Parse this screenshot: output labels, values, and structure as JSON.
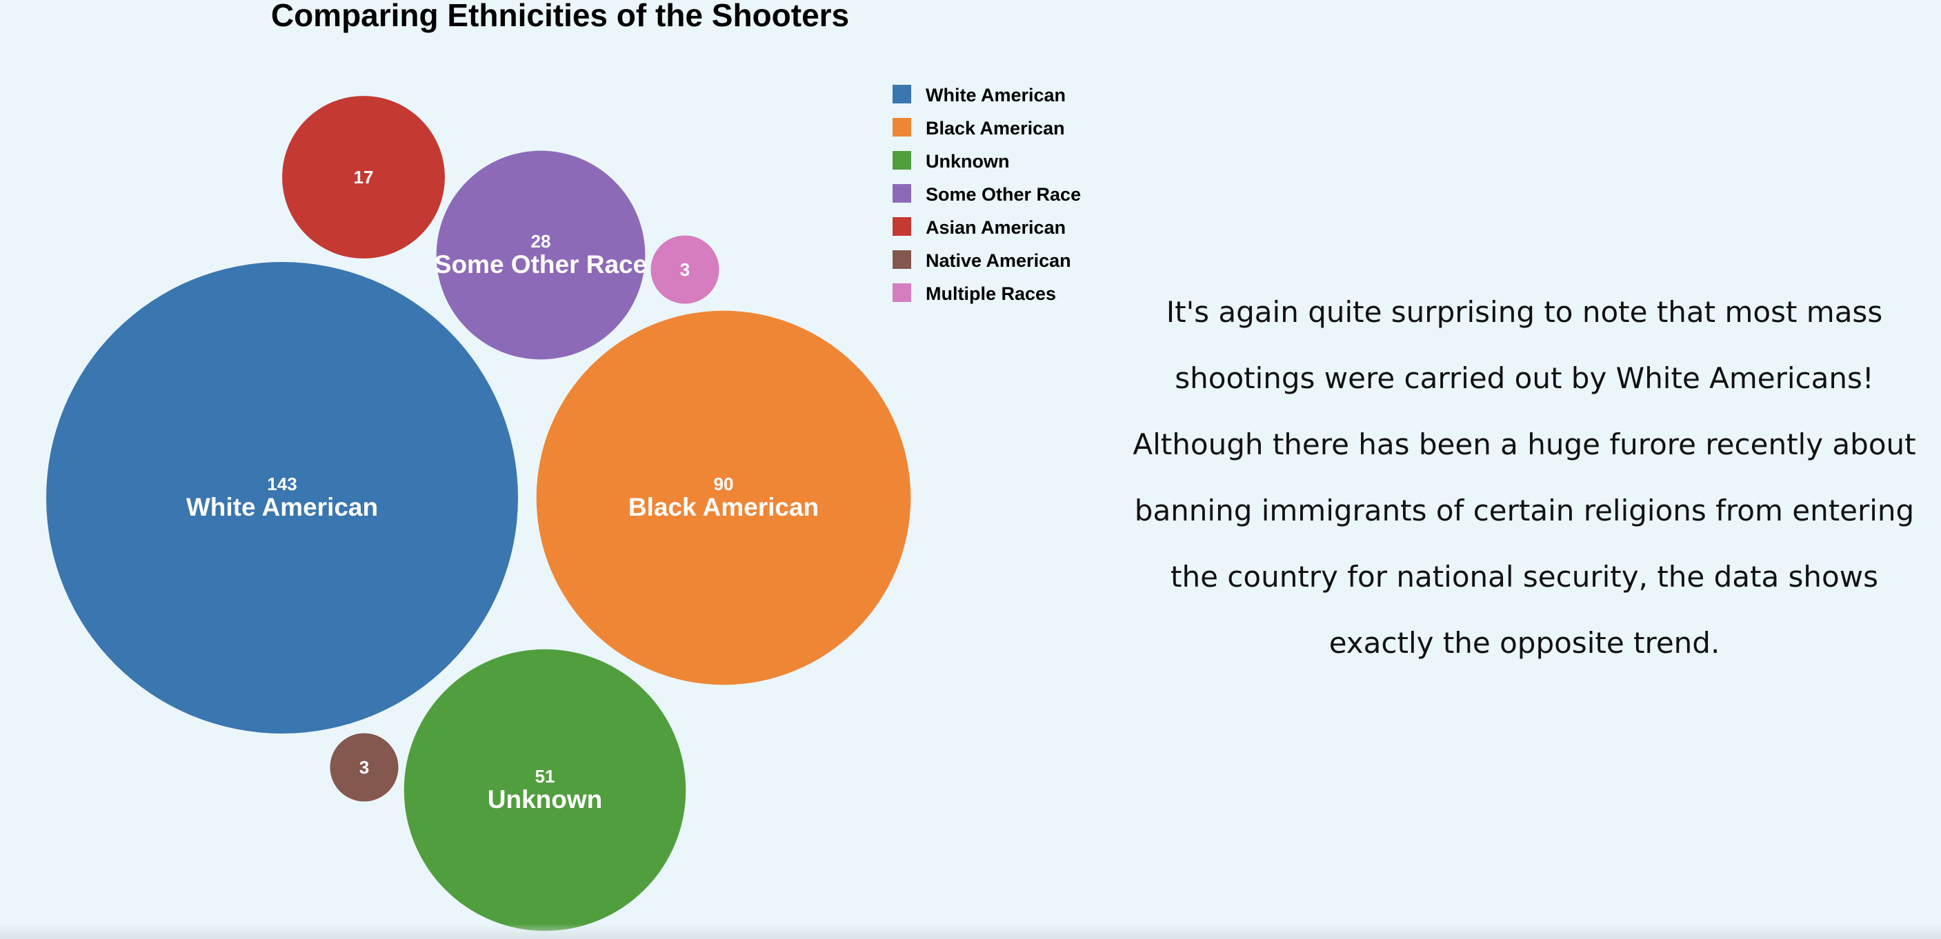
{
  "chart_data": {
    "type": "bubble",
    "title": "Comparing Ethnicities of the Shooters",
    "series": [
      {
        "name": "White American",
        "value": 143,
        "color": "#3a76af",
        "show_label": true
      },
      {
        "name": "Black American",
        "value": 90,
        "color": "#ef8636",
        "show_label": true
      },
      {
        "name": "Unknown",
        "value": 51,
        "color": "#519e3e",
        "show_label": true
      },
      {
        "name": "Some Other Race",
        "value": 28,
        "color": "#8d6ab8",
        "show_label": true
      },
      {
        "name": "Asian American",
        "value": 17,
        "color": "#c43932",
        "show_label": false
      },
      {
        "name": "Native American",
        "value": 3,
        "color": "#84584e",
        "show_label": false
      },
      {
        "name": "Multiple Races",
        "value": 3,
        "color": "#d57dbf",
        "show_label": false
      }
    ],
    "legend": {
      "placement": "top-right",
      "entries": [
        "White American",
        "Black American",
        "Unknown",
        "Some Other Race",
        "Asian American",
        "Native American",
        "Multiple Races"
      ]
    }
  },
  "narrative": "It's again quite surprising to note that most mass shootings were carried out by White Americans! Although there has been a huge furore recently about banning immigrants of certain religions from entering the country for national security, the data shows exactly the opposite trend."
}
